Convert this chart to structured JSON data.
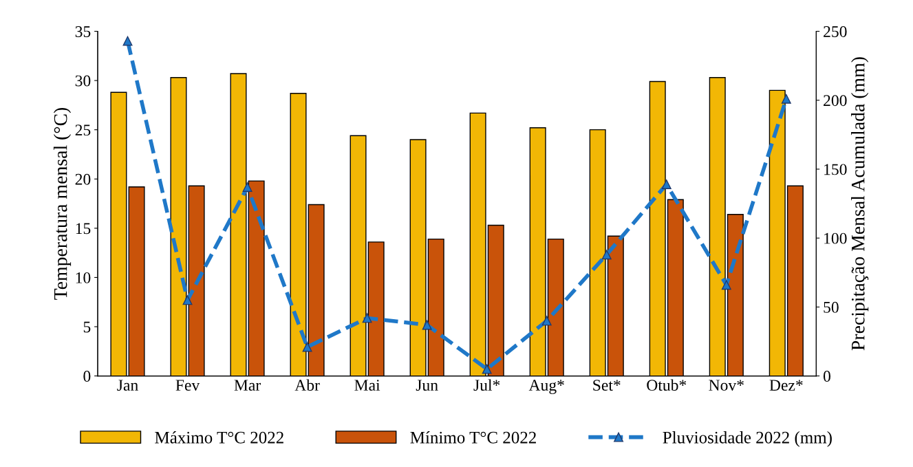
{
  "chart_data": {
    "type": "bar",
    "categories": [
      "Jan",
      "Fev",
      "Mar",
      "Abr",
      "Mai",
      "Jun",
      "Jul*",
      "Aug*",
      "Set*",
      "Otub*",
      "Nov*",
      "Dez*"
    ],
    "series": [
      {
        "name": "Máximo T°C 2022",
        "color": "#f2b705",
        "values": [
          28.8,
          30.3,
          30.7,
          28.7,
          24.4,
          24.0,
          26.7,
          25.2,
          25.0,
          29.9,
          30.3,
          29.0
        ]
      },
      {
        "name": "Mínimo T°C 2022",
        "color": "#c9530a",
        "values": [
          19.2,
          19.3,
          19.8,
          17.4,
          13.6,
          13.9,
          15.3,
          13.9,
          14.2,
          17.9,
          16.4,
          19.3
        ]
      },
      {
        "name": "Pluviosidade 2022 (mm)",
        "type": "line",
        "axis": "y2",
        "color": "#1f78c8",
        "line_style": "dashed",
        "marker": "triangle",
        "values": [
          243,
          55,
          137,
          21,
          42,
          37,
          5,
          40,
          88,
          139,
          66,
          201
        ]
      }
    ],
    "ylabel": "Temperatura mensal (°C)",
    "y2label": "Precipitação Mensal Acumulada (mm)",
    "ylim": [
      0,
      35
    ],
    "yticks": [
      0,
      5,
      10,
      15,
      20,
      25,
      30,
      35
    ],
    "y2lim": [
      0,
      250
    ],
    "y2ticks": [
      0,
      50,
      100,
      150,
      200,
      250
    ],
    "grid": false,
    "legend": "bottom"
  }
}
